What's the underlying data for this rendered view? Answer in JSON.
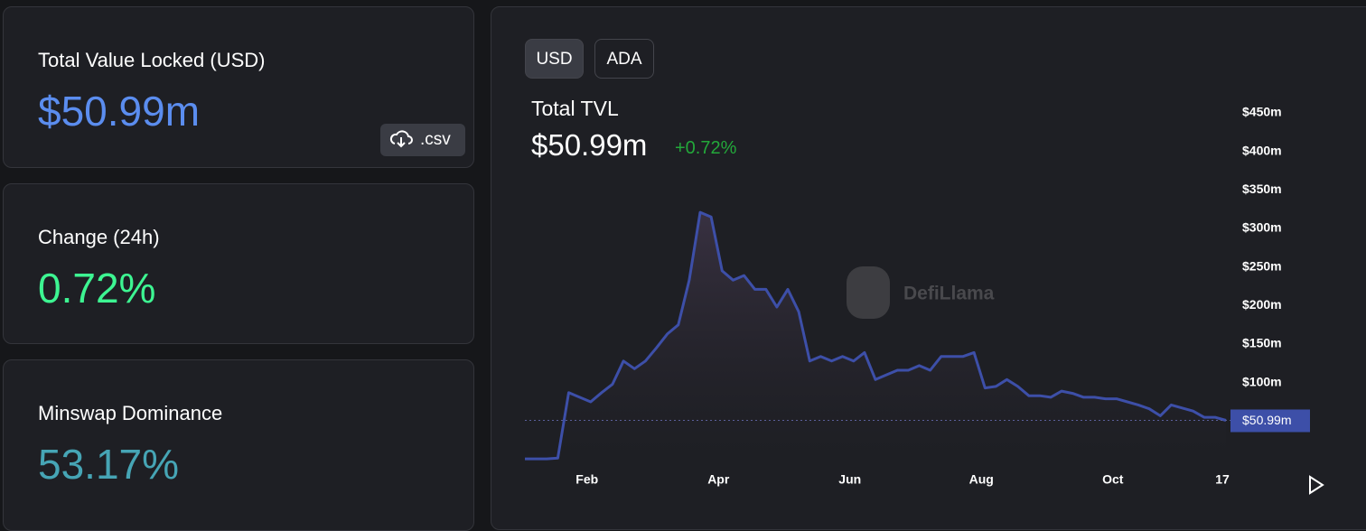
{
  "cards": [
    {
      "label": "Total Value Locked (USD)",
      "value": "$50.99m"
    },
    {
      "label": "Change (24h)",
      "value": "0.72%"
    },
    {
      "label": "Minswap Dominance",
      "value": "53.17%"
    }
  ],
  "csv_button": ".csv",
  "toggle": [
    "USD",
    "ADA"
  ],
  "watermark": "DefiLlama",
  "chart_data": {
    "type": "area",
    "title": "Total TVL",
    "subtitle": "$50.99m",
    "change": "+0.72%",
    "color": "#3d4fa8",
    "categories": [
      null,
      null,
      null,
      null,
      null,
      null,
      "Feb",
      null,
      null,
      null,
      null,
      null,
      null,
      null,
      null,
      null,
      null,
      null,
      "Apr",
      null,
      null,
      null,
      null,
      null,
      null,
      null,
      null,
      null,
      null,
      null,
      "Jun",
      null,
      null,
      null,
      null,
      null,
      null,
      null,
      null,
      null,
      null,
      null,
      "Aug",
      null,
      null,
      null,
      null,
      null,
      null,
      null,
      null,
      null,
      null,
      null,
      "Oct",
      null,
      null,
      null,
      null,
      null,
      null,
      null,
      null,
      null,
      "17"
    ],
    "values": [
      1,
      1,
      1,
      2,
      87,
      81,
      75,
      87,
      98,
      128,
      118,
      128,
      145,
      163,
      175,
      233,
      321,
      315,
      245,
      233,
      239,
      221,
      221,
      198,
      221,
      192,
      128,
      134,
      128,
      134,
      128,
      139,
      104,
      110,
      116,
      116,
      122,
      116,
      134,
      134,
      134,
      139,
      93,
      95,
      104,
      95,
      83,
      83,
      81,
      89,
      86,
      81,
      81,
      79,
      79,
      75,
      71,
      66,
      57,
      71,
      67,
      63,
      55,
      55,
      50.99
    ],
    "last_value_label": "$50.99m",
    "ylim": [
      0,
      450
    ],
    "yticks": [
      {
        "value": 100,
        "label": "$100m"
      },
      {
        "value": 150,
        "label": "$150m"
      },
      {
        "value": 200,
        "label": "$200m"
      },
      {
        "value": 250,
        "label": "$250m"
      },
      {
        "value": 300,
        "label": "$300m"
      },
      {
        "value": 350,
        "label": "$350m"
      },
      {
        "value": 400,
        "label": "$400m"
      },
      {
        "value": 450,
        "label": "$450m"
      }
    ],
    "grid": false
  }
}
